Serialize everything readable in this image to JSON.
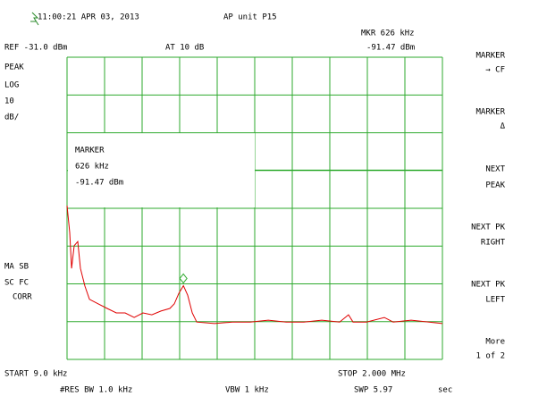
{
  "chart_data": {
    "type": "line",
    "x": [
      9,
      23,
      33,
      47,
      66,
      80,
      104,
      128,
      175,
      222,
      270,
      317,
      365,
      412,
      459,
      507,
      554,
      578,
      602,
      626,
      649,
      673,
      697,
      791,
      886,
      981,
      1076,
      1171,
      1265,
      1360,
      1455,
      1502,
      1526,
      1597,
      1692,
      1739,
      1834,
      1929,
      2000
    ],
    "series": [
      {
        "color": "#e00000",
        "values": [
          -70.3,
          -77.4,
          -86.9,
          -80.9,
          -79.8,
          -86.9,
          -91.6,
          -95.1,
          -96.3,
          -97.5,
          -98.7,
          -98.7,
          -99.9,
          -98.7,
          -99.2,
          -98.2,
          -97.5,
          -96.3,
          -93.5,
          -91.5,
          -94.0,
          -98.7,
          -101.1,
          -101.5,
          -101.1,
          -101.1,
          -100.6,
          -101.1,
          -101.1,
          -100.6,
          -101.1,
          -99.2,
          -101.1,
          -101.1,
          -99.9,
          -101.1,
          -100.6,
          -101.1,
          -101.5
        ]
      }
    ],
    "marker": {
      "x": 626,
      "value": -91.47
    },
    "xlim": [
      9,
      2000
    ],
    "ylim": [
      -111,
      -31
    ],
    "grid": true,
    "grid_color": "#2eaa2e"
  },
  "screen": {
    "timestamp": "11:00:21 APR 03, 2013",
    "title": "AP unit P15",
    "marker_readout": "MKR 626 kHz",
    "ref_level": "REF -31.0 dBm",
    "attenuation": "AT 10 dB",
    "marker_level": "-91.47 dBm",
    "left": [
      "PEAK",
      "LOG",
      "10",
      "dB/",
      "MA SB",
      "SC FC",
      "CORR"
    ],
    "marker_box": [
      "MARKER",
      "626 kHz",
      "-91.47 dBm"
    ],
    "bottom": {
      "start": "START 9.0 kHz",
      "stop": "STOP 2.000 MHz",
      "rbw": "#RES BW 1.0 kHz",
      "vbw": "VBW 1 kHz",
      "sweep": "SWP 5.97",
      "sweep_unit": "sec"
    },
    "softkeys": [
      [
        "MARKER",
        "→ CF"
      ],
      [
        "MARKER",
        "Δ"
      ],
      [
        "NEXT",
        "PEAK"
      ],
      [
        "NEXT PK",
        "RIGHT"
      ],
      [
        "NEXT PK",
        "LEFT"
      ],
      [
        "More",
        "1 of 2"
      ]
    ]
  }
}
